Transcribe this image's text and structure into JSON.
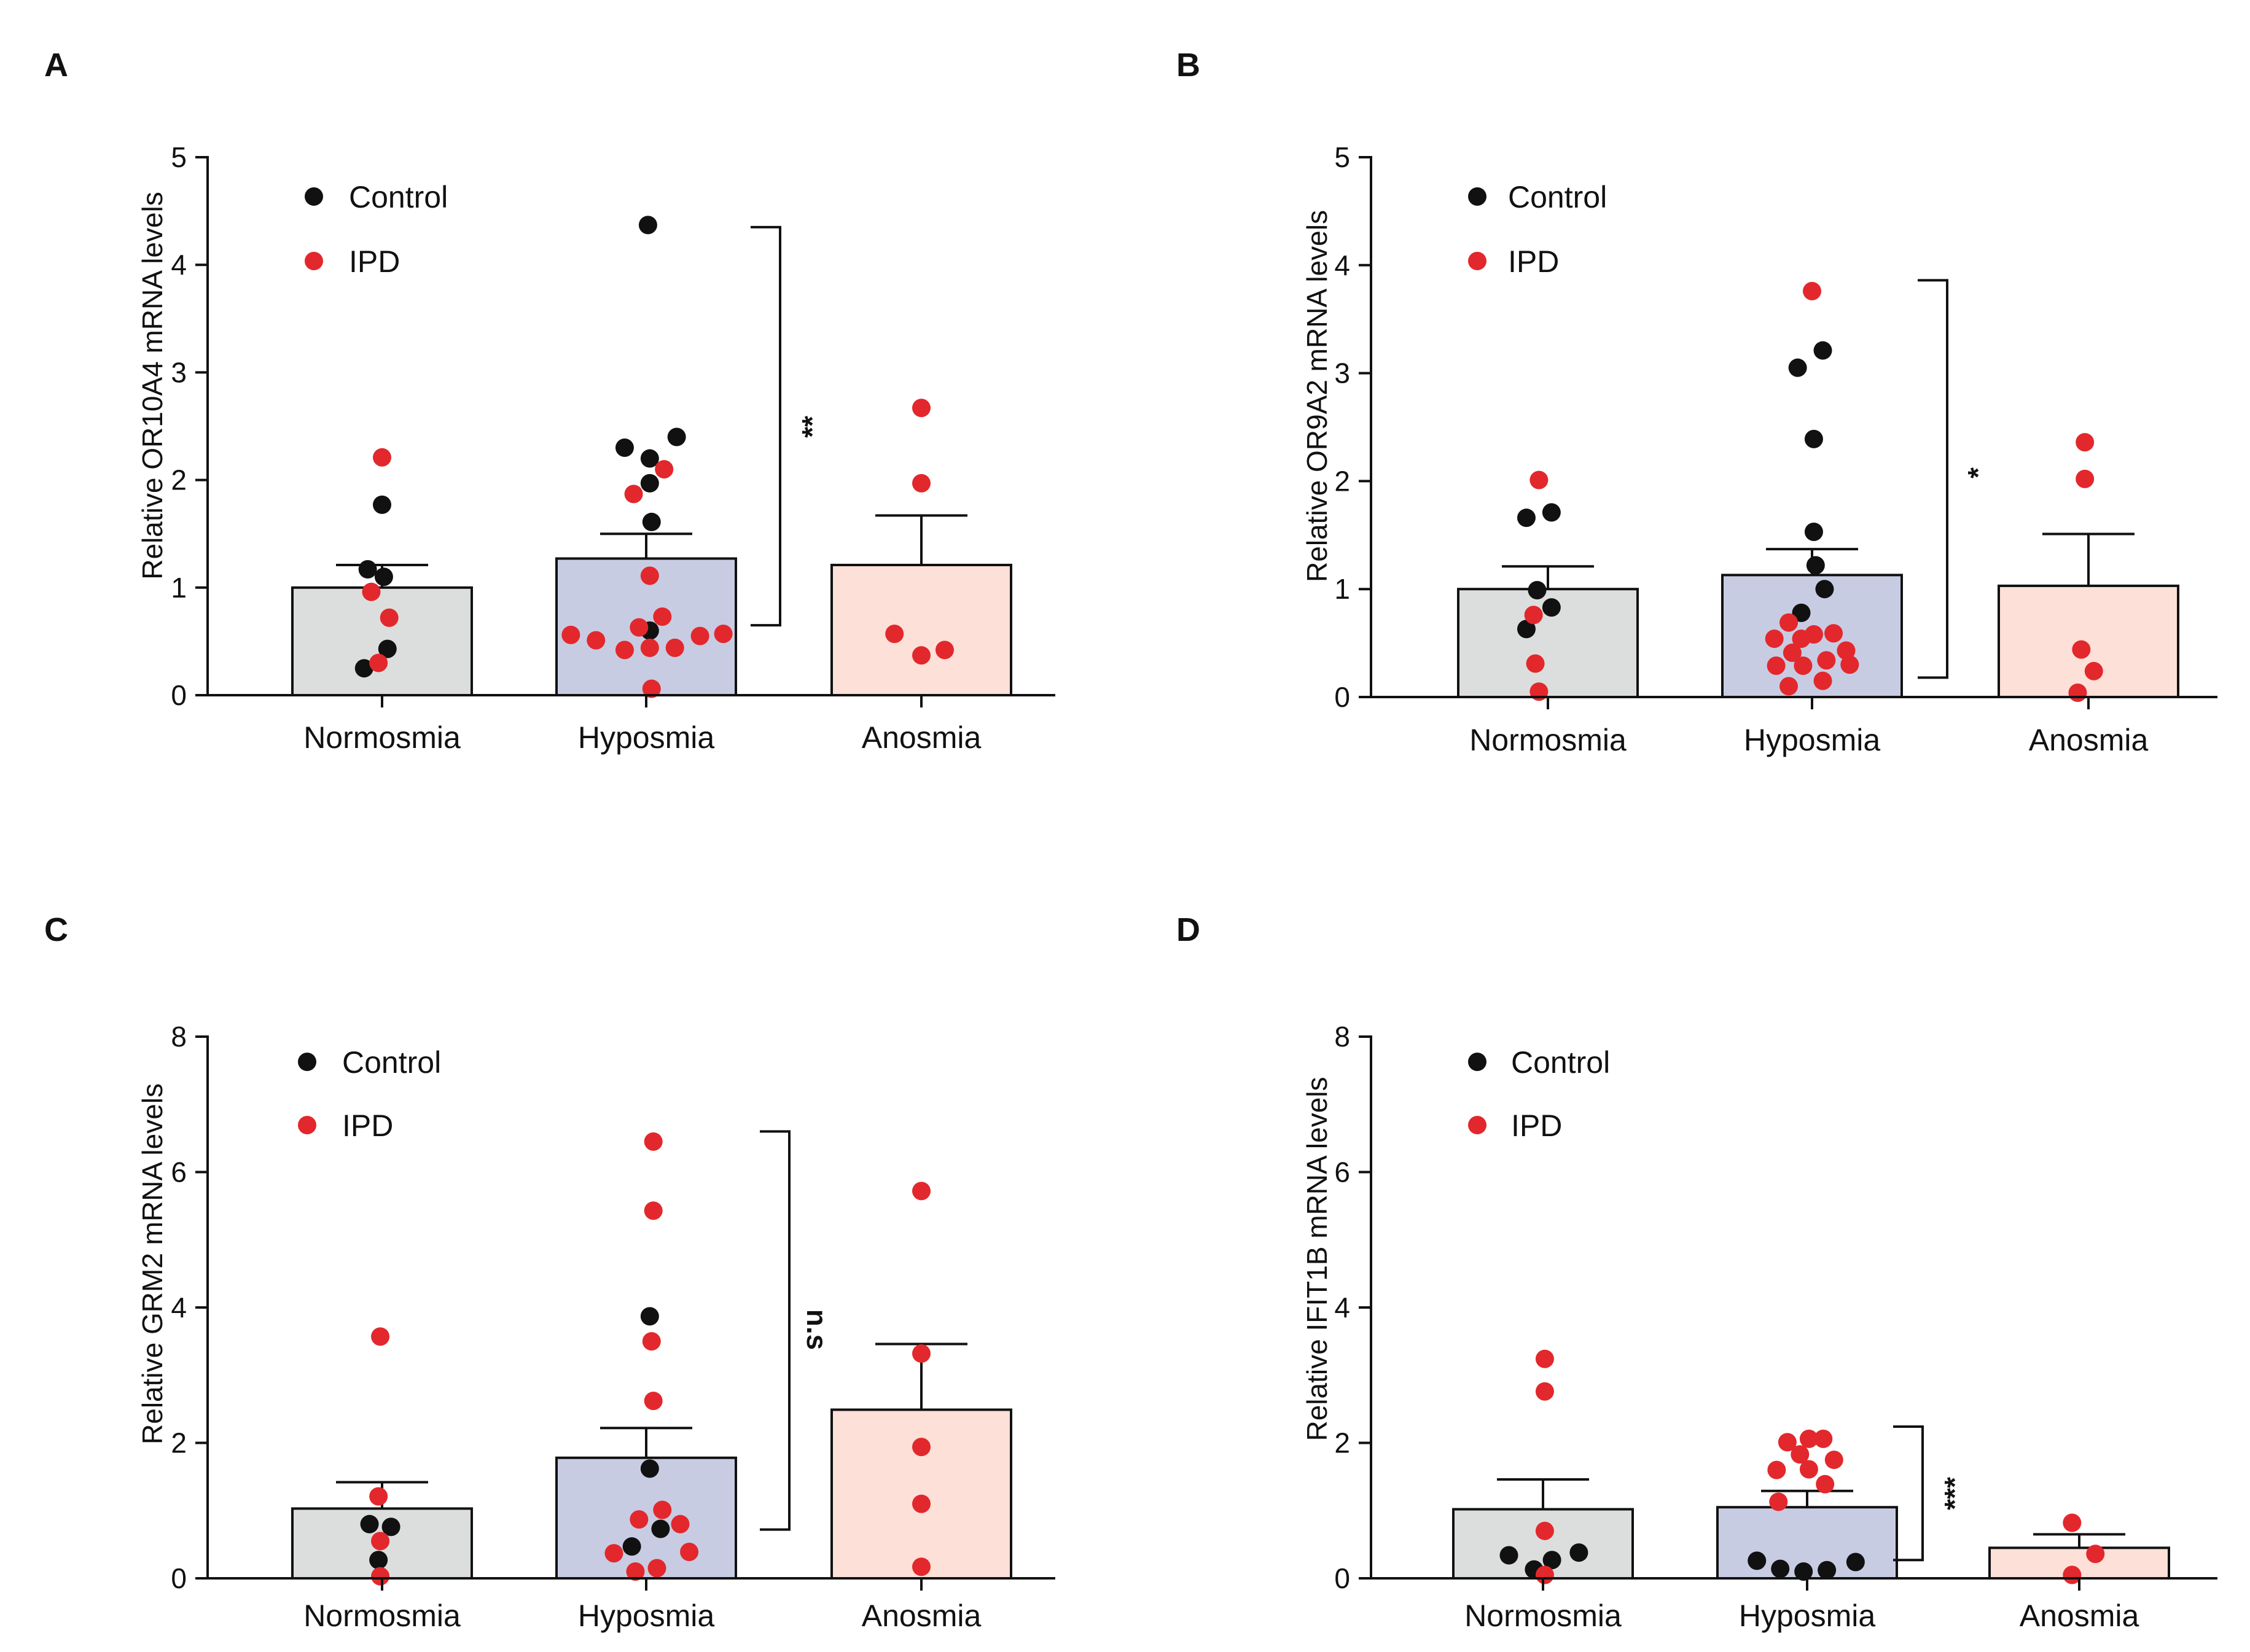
{
  "colors": {
    "control": "#111111",
    "ipd": "#e2282c",
    "bar_normosmia": "#dcdedd",
    "bar_hyposmia": "#c8cce3",
    "bar_anosmia": "#fde0d8",
    "axis": "#111111"
  },
  "chart_data": [
    {
      "panel": "A",
      "type": "bar",
      "ylabel": "Relative OR10A4 mRNA levels",
      "ylim": [
        0,
        5
      ],
      "yticks": [
        "0",
        "1",
        "2",
        "3",
        "4",
        "5"
      ],
      "categories": [
        "Normosmia",
        "Hyposmia",
        "Anosmia"
      ],
      "legend": [
        "Control",
        "IPD"
      ],
      "bars": [
        {
          "category": "Normosmia",
          "mean": 1.0,
          "sem_top": 1.21
        },
        {
          "category": "Hyposmia",
          "mean": 1.27,
          "sem_top": 1.5
        },
        {
          "category": "Anosmia",
          "mean": 1.21,
          "sem_top": 1.67
        }
      ],
      "points": [
        [
          [
            -0.1,
            0.25,
            "control"
          ],
          [
            0.03,
            0.43,
            "control"
          ],
          [
            0.01,
            1.1,
            "control"
          ],
          [
            -0.08,
            1.17,
            "control"
          ],
          [
            0.0,
            1.77,
            "control"
          ],
          [
            -0.06,
            0.96,
            "ipd"
          ],
          [
            -0.02,
            0.3,
            "ipd"
          ],
          [
            0.04,
            0.72,
            "ipd"
          ],
          [
            0.0,
            2.21,
            "ipd"
          ]
        ],
        [
          [
            0.01,
            4.37,
            "control"
          ],
          [
            -0.12,
            2.3,
            "control"
          ],
          [
            0.17,
            2.4,
            "control"
          ],
          [
            0.02,
            2.2,
            "control"
          ],
          [
            0.02,
            1.97,
            "control"
          ],
          [
            0.03,
            1.61,
            "control"
          ],
          [
            0.02,
            0.6,
            "control"
          ],
          [
            0.1,
            2.1,
            "ipd"
          ],
          [
            -0.07,
            1.87,
            "ipd"
          ],
          [
            0.02,
            1.11,
            "ipd"
          ],
          [
            0.09,
            0.73,
            "ipd"
          ],
          [
            -0.04,
            0.63,
            "ipd"
          ],
          [
            -0.42,
            0.56,
            "ipd"
          ],
          [
            -0.28,
            0.51,
            "ipd"
          ],
          [
            -0.12,
            0.42,
            "ipd"
          ],
          [
            0.02,
            0.44,
            "ipd"
          ],
          [
            0.16,
            0.44,
            "ipd"
          ],
          [
            0.3,
            0.55,
            "ipd"
          ],
          [
            0.43,
            0.57,
            "ipd"
          ],
          [
            0.03,
            0.06,
            "ipd"
          ]
        ],
        [
          [
            0.0,
            2.67,
            "ipd"
          ],
          [
            0.0,
            1.97,
            "ipd"
          ],
          [
            -0.15,
            0.57,
            "ipd"
          ],
          [
            0.0,
            0.37,
            "ipd"
          ],
          [
            0.13,
            0.42,
            "ipd"
          ]
        ]
      ],
      "significance": {
        "label": "**",
        "from_group": 1,
        "to_group": 2,
        "y_top": 4.35,
        "y_bottom": 0.65
      }
    },
    {
      "panel": "B",
      "type": "bar",
      "ylabel": "Relative OR9A2 mRNA levels",
      "ylim": [
        0,
        5
      ],
      "yticks": [
        "0",
        "1",
        "2",
        "3",
        "4",
        "5"
      ],
      "categories": [
        "Normosmia",
        "Hyposmia",
        "Anosmia"
      ],
      "legend": [
        "Control",
        "IPD"
      ],
      "bars": [
        {
          "category": "Normosmia",
          "mean": 1.0,
          "sem_top": 1.21
        },
        {
          "category": "Hyposmia",
          "mean": 1.13,
          "sem_top": 1.37
        },
        {
          "category": "Anosmia",
          "mean": 1.03,
          "sem_top": 1.51
        }
      ],
      "points": [
        [
          [
            -0.12,
            1.66,
            "control"
          ],
          [
            0.02,
            1.71,
            "control"
          ],
          [
            -0.06,
            0.99,
            "control"
          ],
          [
            0.02,
            0.83,
            "control"
          ],
          [
            -0.12,
            0.63,
            "control"
          ],
          [
            -0.05,
            2.01,
            "ipd"
          ],
          [
            -0.08,
            0.76,
            "ipd"
          ],
          [
            -0.07,
            0.31,
            "ipd"
          ],
          [
            -0.05,
            0.05,
            "ipd"
          ]
        ],
        [
          [
            -0.08,
            3.05,
            "control"
          ],
          [
            0.06,
            3.21,
            "control"
          ],
          [
            0.01,
            2.39,
            "control"
          ],
          [
            0.01,
            1.53,
            "control"
          ],
          [
            0.02,
            1.22,
            "control"
          ],
          [
            0.07,
            1.0,
            "control"
          ],
          [
            -0.06,
            0.78,
            "control"
          ],
          [
            0.0,
            3.76,
            "ipd"
          ],
          [
            -0.13,
            0.69,
            "ipd"
          ],
          [
            -0.21,
            0.54,
            "ipd"
          ],
          [
            -0.06,
            0.54,
            "ipd"
          ],
          [
            0.01,
            0.58,
            "ipd"
          ],
          [
            0.12,
            0.59,
            "ipd"
          ],
          [
            -0.2,
            0.29,
            "ipd"
          ],
          [
            -0.11,
            0.41,
            "ipd"
          ],
          [
            -0.05,
            0.29,
            "ipd"
          ],
          [
            0.08,
            0.34,
            "ipd"
          ],
          [
            0.19,
            0.43,
            "ipd"
          ],
          [
            0.21,
            0.3,
            "ipd"
          ],
          [
            -0.13,
            0.1,
            "ipd"
          ],
          [
            0.06,
            0.15,
            "ipd"
          ]
        ],
        [
          [
            -0.02,
            2.36,
            "ipd"
          ],
          [
            -0.02,
            2.02,
            "ipd"
          ],
          [
            -0.04,
            0.44,
            "ipd"
          ],
          [
            0.03,
            0.24,
            "ipd"
          ],
          [
            -0.06,
            0.04,
            "ipd"
          ]
        ]
      ],
      "significance": {
        "label": "*",
        "from_group": 1,
        "to_group": 2,
        "y_top": 3.86,
        "y_bottom": 0.18
      }
    },
    {
      "panel": "C",
      "type": "bar",
      "ylabel": "Relative GRM2 mRNA levels",
      "ylim": [
        0,
        8
      ],
      "yticks": [
        "0",
        "2",
        "4",
        "6",
        "8"
      ],
      "categories": [
        "Normosmia",
        "Hyposmia",
        "Anosmia"
      ],
      "legend": [
        "Control",
        "IPD"
      ],
      "bars": [
        {
          "category": "Normosmia",
          "mean": 1.03,
          "sem_top": 1.42
        },
        {
          "category": "Hyposmia",
          "mean": 1.78,
          "sem_top": 2.22
        },
        {
          "category": "Anosmia",
          "mean": 2.49,
          "sem_top": 3.46
        }
      ],
      "points": [
        [
          [
            -0.07,
            0.8,
            "control"
          ],
          [
            0.05,
            0.76,
            "control"
          ],
          [
            -0.02,
            0.27,
            "control"
          ],
          [
            -0.01,
            3.57,
            "ipd"
          ],
          [
            -0.02,
            1.21,
            "ipd"
          ],
          [
            -0.01,
            0.55,
            "ipd"
          ],
          [
            -0.01,
            0.03,
            "ipd"
          ]
        ],
        [
          [
            0.02,
            3.87,
            "control"
          ],
          [
            0.02,
            1.62,
            "control"
          ],
          [
            0.08,
            0.73,
            "control"
          ],
          [
            -0.08,
            0.47,
            "control"
          ],
          [
            0.04,
            6.45,
            "ipd"
          ],
          [
            0.04,
            5.43,
            "ipd"
          ],
          [
            0.03,
            3.5,
            "ipd"
          ],
          [
            0.04,
            2.62,
            "ipd"
          ],
          [
            -0.04,
            0.87,
            "ipd"
          ],
          [
            0.09,
            1.01,
            "ipd"
          ],
          [
            0.19,
            0.8,
            "ipd"
          ],
          [
            -0.18,
            0.37,
            "ipd"
          ],
          [
            0.24,
            0.39,
            "ipd"
          ],
          [
            -0.06,
            0.1,
            "ipd"
          ],
          [
            0.06,
            0.15,
            "ipd"
          ]
        ],
        [
          [
            0.0,
            5.72,
            "ipd"
          ],
          [
            0.0,
            3.32,
            "ipd"
          ],
          [
            0.0,
            1.94,
            "ipd"
          ],
          [
            0.0,
            1.1,
            "ipd"
          ],
          [
            0.0,
            0.17,
            "ipd"
          ]
        ]
      ],
      "significance": {
        "label": "n.s",
        "from_group": 1,
        "to_group": 2,
        "y_top": 6.6,
        "y_bottom": 0.72
      }
    },
    {
      "panel": "D",
      "type": "bar",
      "ylabel": "Relative IFIT1B mRNA levels",
      "ylim": [
        0,
        8
      ],
      "yticks": [
        "0",
        "2",
        "4",
        "6",
        "8"
      ],
      "categories": [
        "Normosmia",
        "Hyposmia",
        "Anosmia"
      ],
      "legend": [
        "Control",
        "IPD"
      ],
      "bars": [
        {
          "category": "Normosmia",
          "mean": 1.02,
          "sem_top": 1.46
        },
        {
          "category": "Hyposmia",
          "mean": 1.05,
          "sem_top": 1.29
        },
        {
          "category": "Anosmia",
          "mean": 0.45,
          "sem_top": 0.65
        }
      ],
      "points": [
        [
          [
            -0.19,
            0.34,
            "control"
          ],
          [
            -0.05,
            0.13,
            "control"
          ],
          [
            0.05,
            0.27,
            "control"
          ],
          [
            0.2,
            0.38,
            "control"
          ],
          [
            0.01,
            3.24,
            "ipd"
          ],
          [
            0.01,
            2.76,
            "ipd"
          ],
          [
            0.01,
            0.7,
            "ipd"
          ],
          [
            0.01,
            0.05,
            "ipd"
          ]
        ],
        [
          [
            -0.28,
            0.26,
            "control"
          ],
          [
            -0.15,
            0.14,
            "control"
          ],
          [
            -0.02,
            0.1,
            "control"
          ],
          [
            0.11,
            0.12,
            "control"
          ],
          [
            0.27,
            0.24,
            "control"
          ],
          [
            -0.11,
            2.01,
            "ipd"
          ],
          [
            0.01,
            2.06,
            "ipd"
          ],
          [
            0.09,
            2.06,
            "ipd"
          ],
          [
            -0.04,
            1.83,
            "ipd"
          ],
          [
            -0.17,
            1.6,
            "ipd"
          ],
          [
            0.01,
            1.61,
            "ipd"
          ],
          [
            0.15,
            1.75,
            "ipd"
          ],
          [
            0.1,
            1.39,
            "ipd"
          ],
          [
            -0.16,
            1.13,
            "ipd"
          ]
        ],
        [
          [
            -0.04,
            0.82,
            "ipd"
          ],
          [
            0.09,
            0.36,
            "ipd"
          ],
          [
            -0.04,
            0.05,
            "ipd"
          ]
        ]
      ],
      "significance": {
        "label": "***",
        "from_group": 1,
        "to_group": 2,
        "y_top": 2.24,
        "y_bottom": 0.27
      }
    }
  ]
}
